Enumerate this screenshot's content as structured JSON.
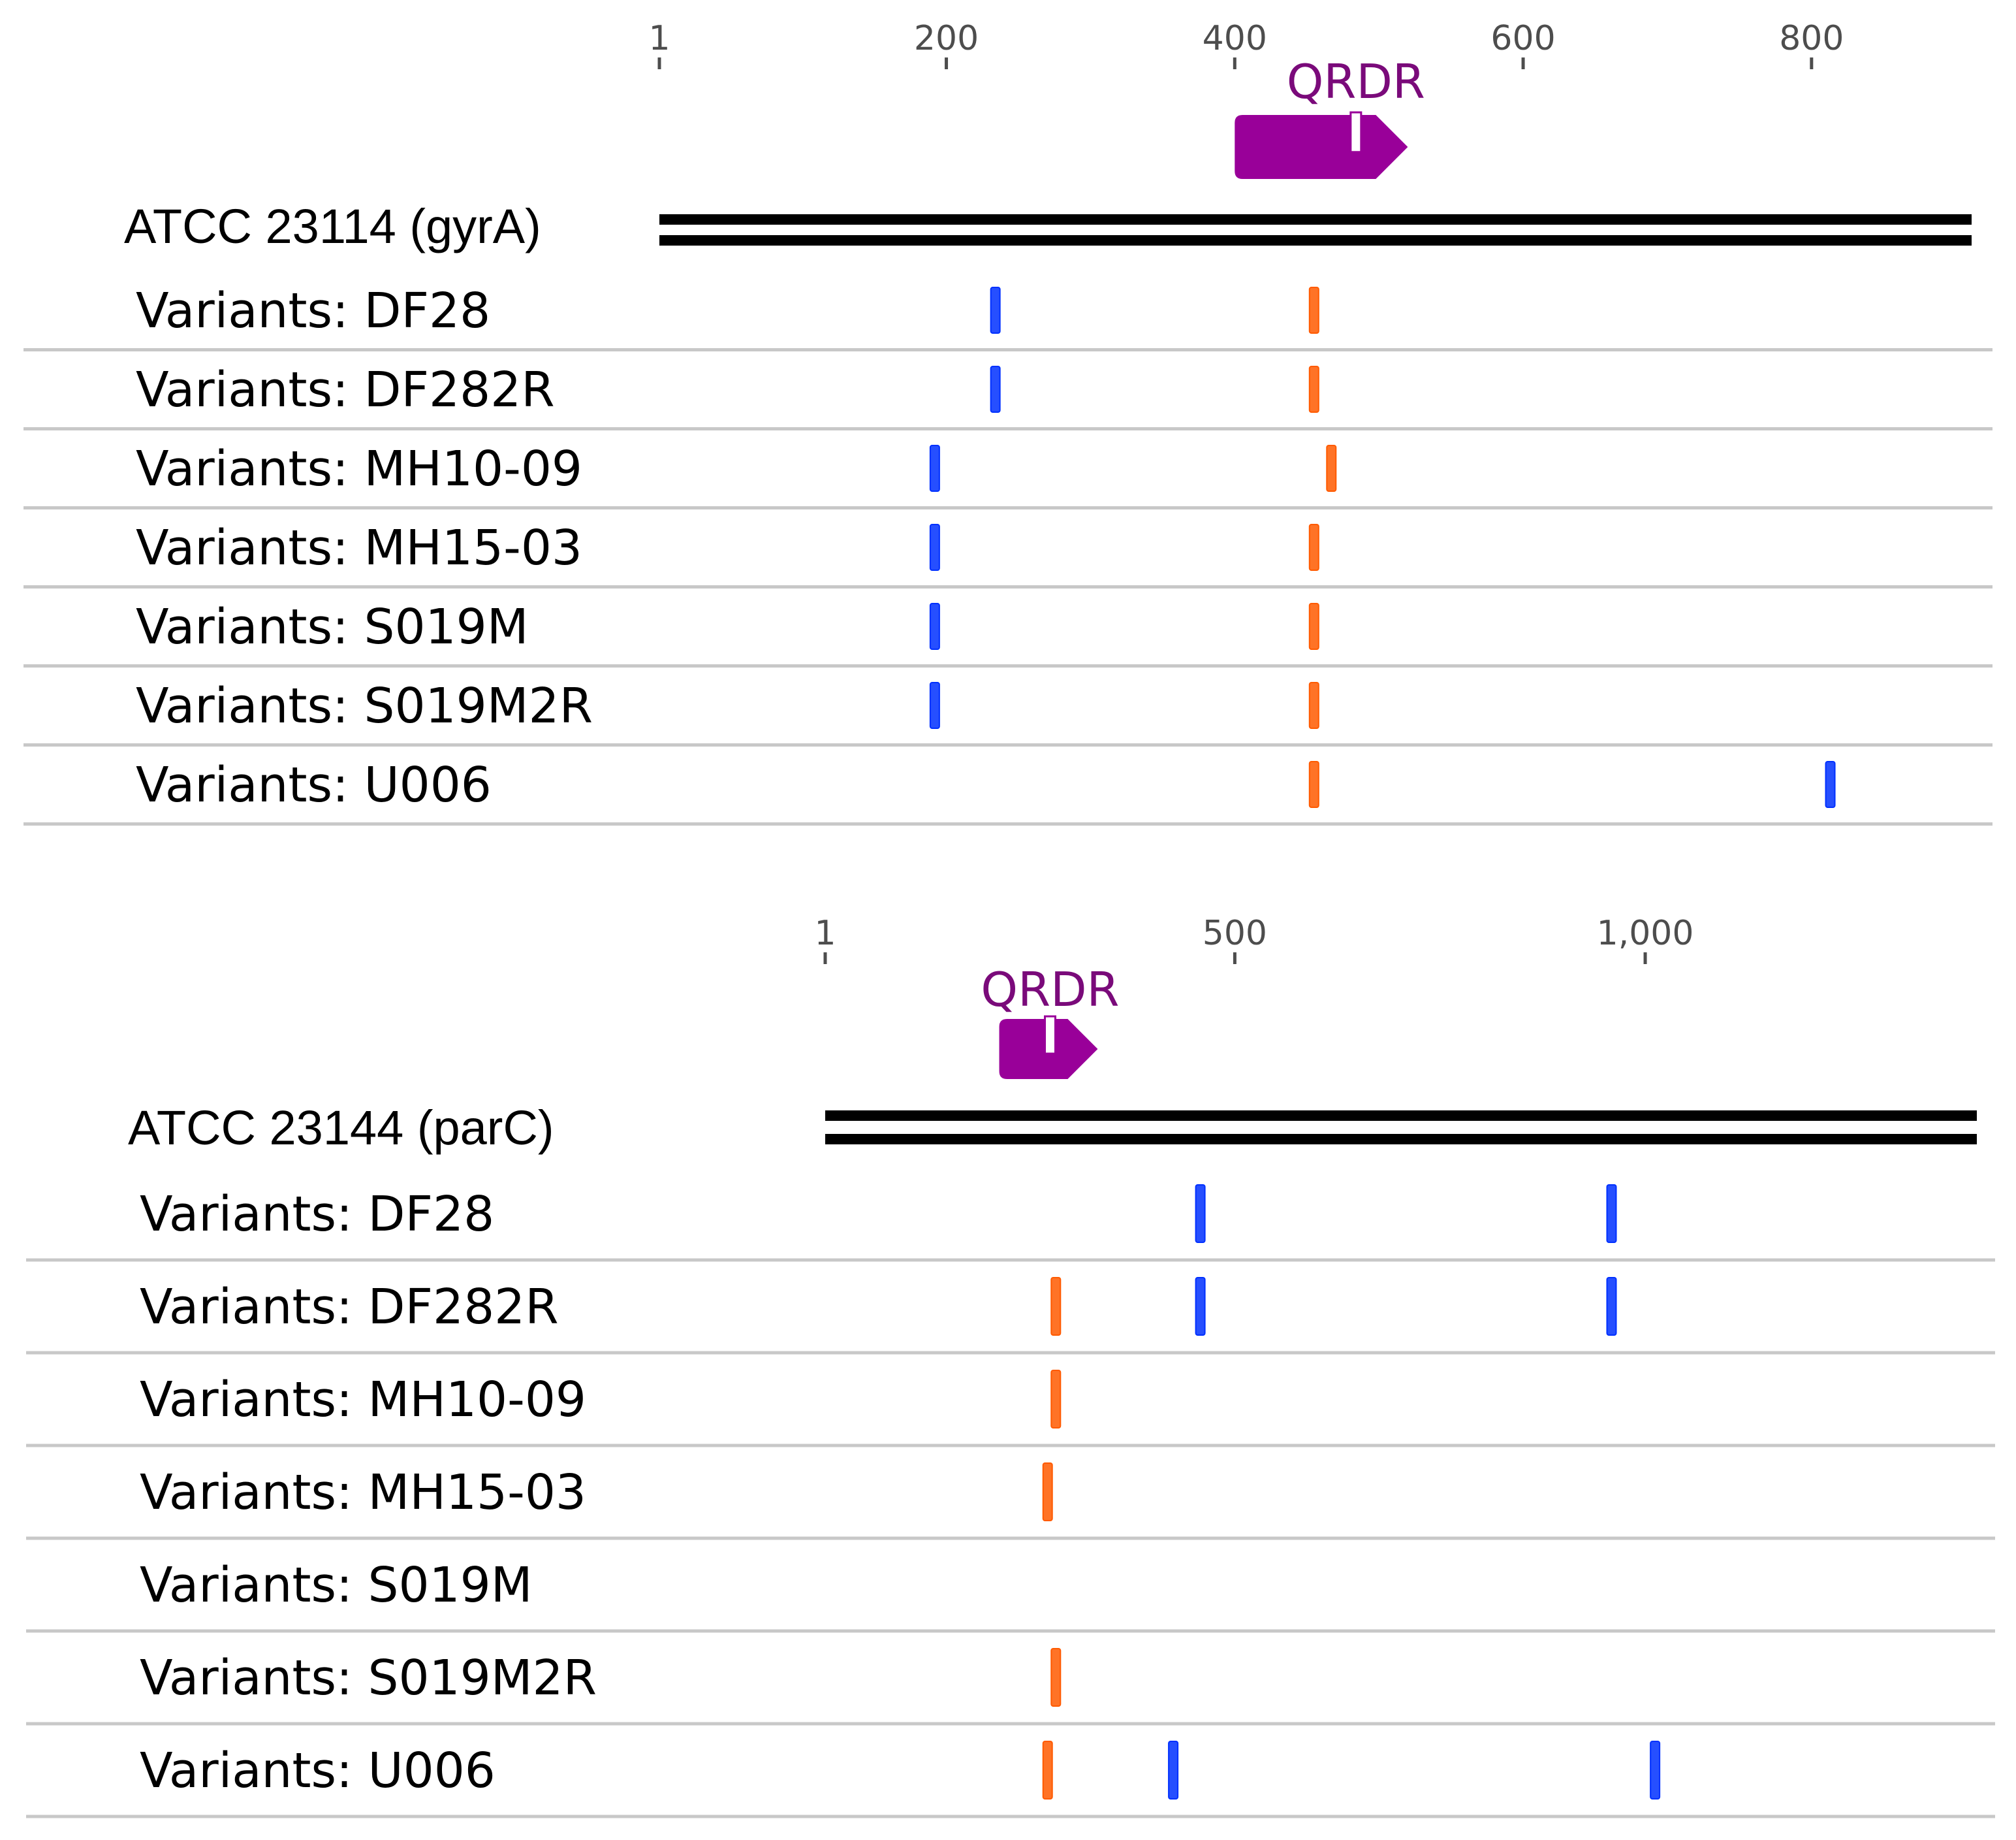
{
  "colors": {
    "substitution": "#ff5a00",
    "variant": "#0030ff",
    "region": "#990099",
    "region_label": "#7a0a7a",
    "axis_text": "#4d4d4d",
    "divider": "#c8c8c8",
    "reference": "#000000"
  },
  "panels": [
    {
      "reference_label": "ATCC 23114 (gyrA)",
      "axis": {
        "ticks": [
          {
            "value": 1,
            "label": "1"
          },
          {
            "value": 200,
            "label": "200"
          },
          {
            "value": 400,
            "label": "400"
          },
          {
            "value": 600,
            "label": "600"
          },
          {
            "value": 800,
            "label": "800"
          }
        ],
        "domain": [
          1,
          911
        ]
      },
      "region": {
        "label": "QRDR",
        "start": 400,
        "end": 520,
        "marker": 484
      },
      "rows": [
        {
          "label": "Variants: DF28",
          "marks": [
            {
              "pos": 234,
              "type": "variant"
            },
            {
              "pos": 455,
              "type": "substitution"
            }
          ]
        },
        {
          "label": "Variants: DF282R",
          "marks": [
            {
              "pos": 234,
              "type": "variant"
            },
            {
              "pos": 455,
              "type": "substitution"
            }
          ]
        },
        {
          "label": "Variants: MH10-09",
          "marks": [
            {
              "pos": 192,
              "type": "variant"
            },
            {
              "pos": 467,
              "type": "substitution"
            }
          ]
        },
        {
          "label": "Variants: MH15-03",
          "marks": [
            {
              "pos": 192,
              "type": "variant"
            },
            {
              "pos": 455,
              "type": "substitution"
            }
          ]
        },
        {
          "label": "Variants: S019M",
          "marks": [
            {
              "pos": 192,
              "type": "variant"
            },
            {
              "pos": 455,
              "type": "substitution"
            }
          ]
        },
        {
          "label": "Variants: S019M2R",
          "marks": [
            {
              "pos": 192,
              "type": "variant"
            },
            {
              "pos": 455,
              "type": "substitution"
            }
          ]
        },
        {
          "label": "Variants: U006",
          "marks": [
            {
              "pos": 455,
              "type": "substitution"
            },
            {
              "pos": 813,
              "type": "variant"
            }
          ]
        }
      ]
    },
    {
      "reference_label": "ATCC 23144 (parC)",
      "axis": {
        "ticks": [
          {
            "value": 1,
            "label": "1"
          },
          {
            "value": 500,
            "label": "500"
          },
          {
            "value": 1000,
            "label": "1,000"
          }
        ],
        "domain": [
          1,
          1404
        ]
      },
      "region": {
        "label": "QRDR",
        "start": 213,
        "end": 333,
        "marker": 275
      },
      "rows": [
        {
          "label": "Variants: DF28",
          "marks": [
            {
              "pos": 458,
              "type": "variant"
            },
            {
              "pos": 959,
              "type": "variant"
            }
          ]
        },
        {
          "label": "Variants: DF282R",
          "marks": [
            {
              "pos": 282,
              "type": "substitution"
            },
            {
              "pos": 458,
              "type": "variant"
            },
            {
              "pos": 959,
              "type": "variant"
            }
          ]
        },
        {
          "label": "Variants: MH10-09",
          "marks": [
            {
              "pos": 282,
              "type": "substitution"
            }
          ]
        },
        {
          "label": "Variants: MH15-03",
          "marks": [
            {
              "pos": 272,
              "type": "substitution"
            }
          ]
        },
        {
          "label": "Variants: S019M",
          "marks": []
        },
        {
          "label": "Variants: S019M2R",
          "marks": [
            {
              "pos": 282,
              "type": "substitution"
            }
          ]
        },
        {
          "label": "Variants: U006",
          "marks": [
            {
              "pos": 272,
              "type": "substitution"
            },
            {
              "pos": 425,
              "type": "variant"
            },
            {
              "pos": 1012,
              "type": "variant"
            }
          ]
        }
      ]
    }
  ]
}
